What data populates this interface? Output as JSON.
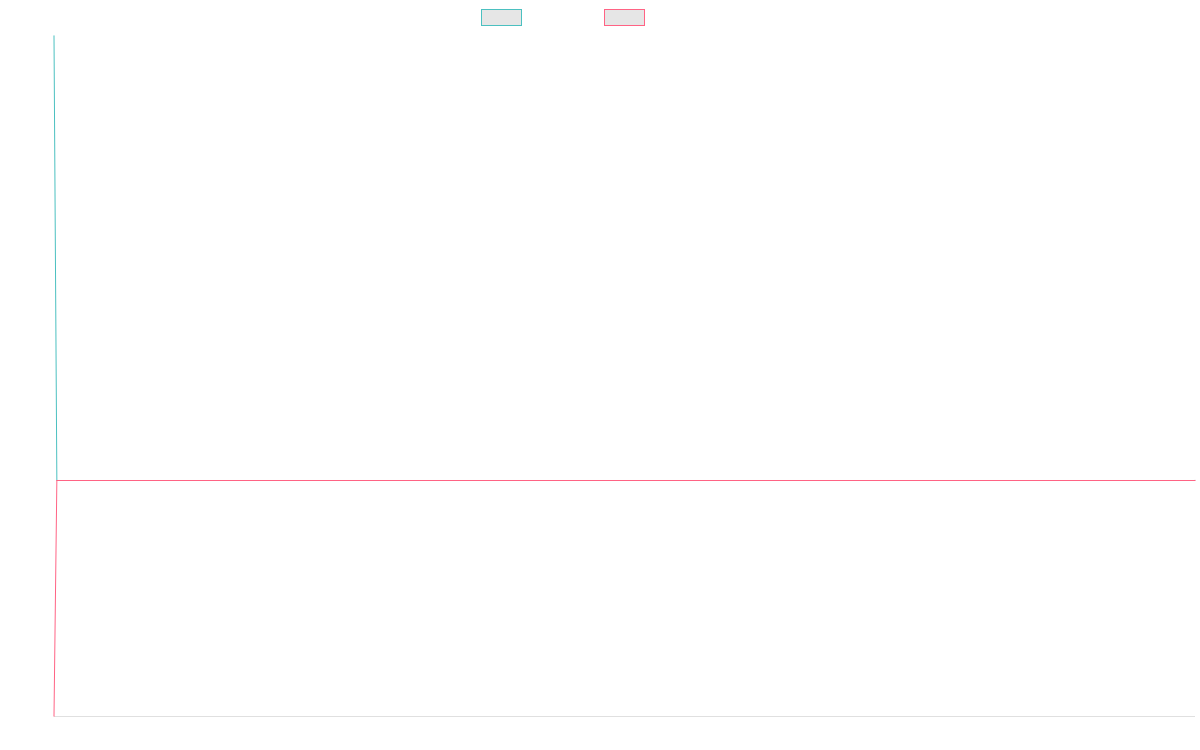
{
  "chart_data": {
    "type": "line",
    "title": "",
    "xlabel": "",
    "ylabel": "",
    "x": [
      0,
      1,
      400
    ],
    "series": [
      {
        "name": "",
        "color": "#4bc0c0",
        "fill": "#e6e6e6",
        "values": [
          100,
          0,
          0
        ]
      },
      {
        "name": "",
        "color": "#ff6384",
        "fill": "#e6e6e6",
        "values": [
          -53,
          0,
          0
        ]
      }
    ],
    "xlim": [
      0,
      400
    ],
    "ylim": [
      -53,
      100
    ],
    "grid": false,
    "legend": "top-center"
  }
}
